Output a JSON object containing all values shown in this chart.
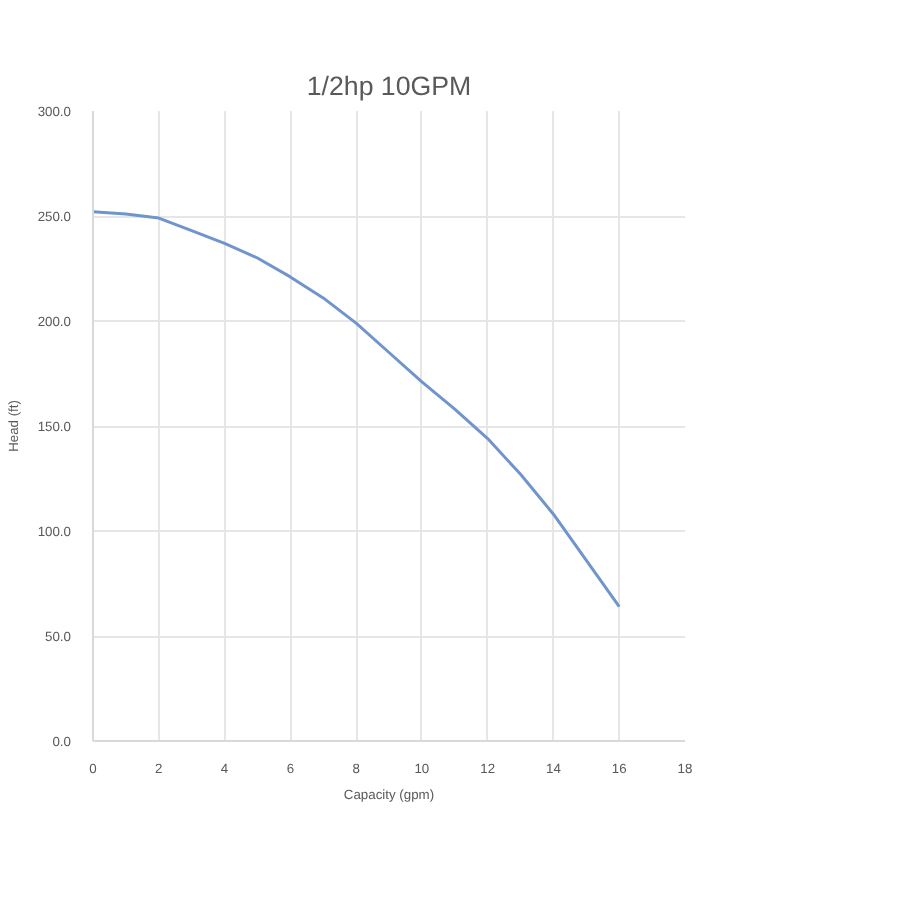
{
  "chart_data": {
    "type": "line",
    "title": "1/2hp 10GPM",
    "xlabel": "Capacity (gpm)",
    "ylabel": "Head (ft)",
    "x": [
      0,
      1,
      2,
      3,
      4,
      5,
      6,
      7,
      8,
      9,
      10,
      11,
      12,
      13,
      14,
      15,
      16
    ],
    "series": [
      {
        "color": "#7094cc",
        "values": [
          252,
          251,
          249,
          243,
          237,
          230,
          221,
          211,
          199,
          185,
          171,
          158,
          144,
          127,
          108,
          86,
          64
        ]
      }
    ],
    "xlim": [
      0,
      18
    ],
    "xticks": [
      0,
      2,
      4,
      6,
      8,
      10,
      12,
      14,
      16,
      18
    ],
    "ylim": [
      0,
      300
    ],
    "yticks": [
      {
        "value": 0,
        "label": "0.0"
      },
      {
        "value": 50,
        "label": "50.0"
      },
      {
        "value": 100,
        "label": "100.0"
      },
      {
        "value": 150,
        "label": "150.0"
      },
      {
        "value": 200,
        "label": "200.0"
      },
      {
        "value": 250,
        "label": "250.0"
      },
      {
        "value": 300,
        "label": "300.0"
      }
    ],
    "grid": true,
    "marker": "none",
    "line_style": "solid"
  }
}
